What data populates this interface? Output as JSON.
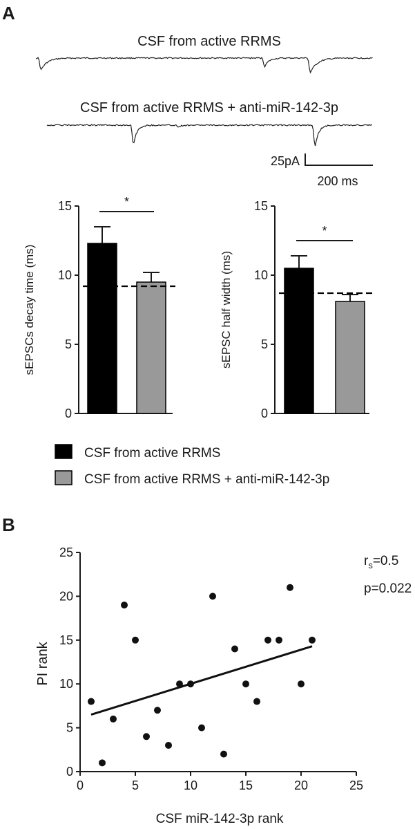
{
  "panel_labels": {
    "a": "A",
    "b": "B"
  },
  "traces": {
    "title_1": "CSF from active RRMS",
    "title_2": "CSF from active RRMS + anti-miR-142-3p",
    "scale_amplitude": "25pA",
    "scale_time": "200 ms"
  },
  "colors": {
    "group_1": "#000000",
    "group_2": "#999999",
    "axis": "#1a1a1a"
  },
  "legend": [
    {
      "label": "CSF from active RRMS",
      "color": "#000000"
    },
    {
      "label": "CSF from active RRMS + anti-miR-142-3p",
      "color": "#999999"
    }
  ],
  "significance_marker": "*",
  "annotation": {
    "rs_prefix": "r",
    "rs_sub": "s",
    "rs_value": "=0.5",
    "p_text": "p=0.022"
  },
  "chart_data": [
    {
      "type": "bar",
      "ylabel": "sEPSCs decay time (ms)",
      "ylim": [
        0,
        15
      ],
      "yticks": [
        "0",
        "5",
        "10",
        "15"
      ],
      "categories": [
        "CSF from active RRMS",
        "CSF from active RRMS + anti-miR-142-3p"
      ],
      "values": [
        12.3,
        9.5
      ],
      "errors": [
        1.2,
        0.7
      ],
      "reference_line": 9.2,
      "significant": true
    },
    {
      "type": "bar",
      "ylabel": "sEPSC half width (ms)",
      "ylim": [
        0,
        15
      ],
      "yticks": [
        "0",
        "5",
        "10",
        "15"
      ],
      "categories": [
        "CSF from active RRMS",
        "CSF from active RRMS + anti-miR-142-3p"
      ],
      "values": [
        10.5,
        8.1
      ],
      "errors": [
        0.9,
        0.5
      ],
      "reference_line": 8.7,
      "significant": true
    },
    {
      "type": "scatter",
      "xlabel": "CSF miR-142-3p rank",
      "ylabel": "PI rank",
      "xlim": [
        0,
        25
      ],
      "ylim": [
        0,
        25
      ],
      "xticks": [
        "0",
        "5",
        "10",
        "15",
        "20",
        "25"
      ],
      "yticks": [
        "0",
        "5",
        "10",
        "15",
        "20",
        "25"
      ],
      "points": [
        [
          1,
          8
        ],
        [
          2,
          1
        ],
        [
          3,
          6
        ],
        [
          4,
          19
        ],
        [
          5,
          15
        ],
        [
          6,
          4
        ],
        [
          7,
          7
        ],
        [
          8,
          3
        ],
        [
          9,
          10
        ],
        [
          10,
          10
        ],
        [
          11,
          5
        ],
        [
          12,
          20
        ],
        [
          13,
          2
        ],
        [
          14,
          14
        ],
        [
          15,
          10
        ],
        [
          16,
          8
        ],
        [
          17,
          15
        ],
        [
          18,
          15
        ],
        [
          19,
          21
        ],
        [
          20,
          10
        ],
        [
          21,
          15
        ]
      ],
      "fit_line": {
        "x": [
          1,
          21
        ],
        "y": [
          6.5,
          14.3
        ]
      }
    }
  ]
}
